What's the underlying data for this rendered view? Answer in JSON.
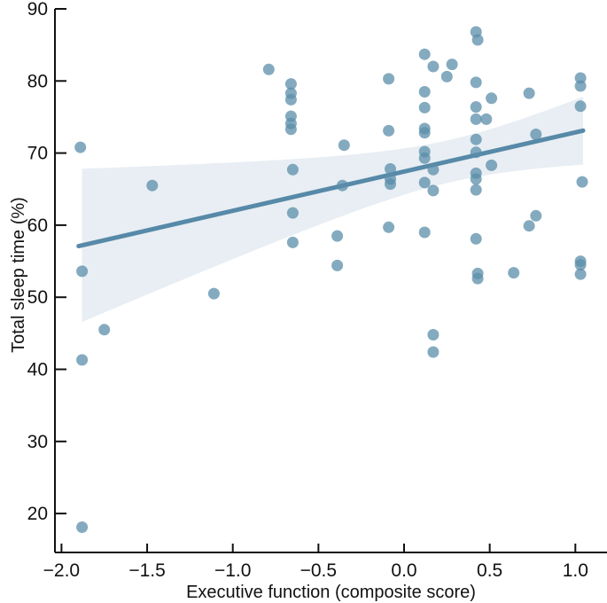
{
  "figure": {
    "background": "#ffffff"
  },
  "chart_data": {
    "type": "scatter",
    "title": "",
    "xlabel": "Executive function (composite score)",
    "ylabel": "Total sleep time (%)",
    "xlim": [
      -2.0,
      1.0
    ],
    "ylim": [
      20,
      90
    ],
    "grid": false,
    "legend": "none",
    "xticks": [
      {
        "value": -2.0,
        "label": "−2.0"
      },
      {
        "value": -1.5,
        "label": "−1.5"
      },
      {
        "value": -1.0,
        "label": "−1.0"
      },
      {
        "value": -0.5,
        "label": "−0.5"
      },
      {
        "value": 0.0,
        "label": "0.0"
      },
      {
        "value": 0.5,
        "label": "0.5"
      },
      {
        "value": 1.0,
        "label": "1.0"
      }
    ],
    "yticks": [
      {
        "value": 20,
        "label": "20"
      },
      {
        "value": 30,
        "label": "30"
      },
      {
        "value": 40,
        "label": "40"
      },
      {
        "value": 50,
        "label": "50"
      },
      {
        "value": 60,
        "label": "60"
      },
      {
        "value": 70,
        "label": "70"
      },
      {
        "value": 80,
        "label": "80"
      },
      {
        "value": 90,
        "label": "90"
      }
    ],
    "points": [
      [
        -1.89,
        70.8
      ],
      [
        -1.88,
        53.6
      ],
      [
        -1.88,
        41.3
      ],
      [
        -1.88,
        18.1
      ],
      [
        -1.75,
        45.5
      ],
      [
        -1.47,
        65.5
      ],
      [
        -1.11,
        50.5
      ],
      [
        -0.79,
        81.6
      ],
      [
        -0.66,
        79.6
      ],
      [
        -0.66,
        78.3
      ],
      [
        -0.66,
        77.4
      ],
      [
        -0.66,
        75.1
      ],
      [
        -0.66,
        74.1
      ],
      [
        -0.66,
        73.3
      ],
      [
        -0.65,
        67.7
      ],
      [
        -0.65,
        61.7
      ],
      [
        -0.65,
        57.6
      ],
      [
        -0.39,
        58.5
      ],
      [
        -0.39,
        54.4
      ],
      [
        -0.36,
        65.5
      ],
      [
        -0.35,
        71.1
      ],
      [
        -0.09,
        80.3
      ],
      [
        -0.09,
        73.1
      ],
      [
        -0.08,
        67.8
      ],
      [
        -0.08,
        66.4
      ],
      [
        -0.08,
        65.7
      ],
      [
        -0.09,
        59.7
      ],
      [
        0.12,
        83.7
      ],
      [
        0.12,
        78.5
      ],
      [
        0.12,
        76.3
      ],
      [
        0.12,
        73.4
      ],
      [
        0.12,
        72.8
      ],
      [
        0.12,
        70.2
      ],
      [
        0.12,
        69.3
      ],
      [
        0.12,
        65.9
      ],
      [
        0.12,
        59.0
      ],
      [
        0.17,
        82.0
      ],
      [
        0.17,
        67.7
      ],
      [
        0.17,
        64.8
      ],
      [
        0.17,
        44.8
      ],
      [
        0.17,
        42.4
      ],
      [
        0.25,
        80.6
      ],
      [
        0.28,
        82.3
      ],
      [
        0.42,
        86.8
      ],
      [
        0.43,
        85.7
      ],
      [
        0.42,
        79.8
      ],
      [
        0.42,
        76.4
      ],
      [
        0.42,
        74.7
      ],
      [
        0.48,
        74.7
      ],
      [
        0.42,
        71.9
      ],
      [
        0.42,
        70.1
      ],
      [
        0.42,
        67.2
      ],
      [
        0.42,
        66.4
      ],
      [
        0.42,
        64.9
      ],
      [
        0.42,
        58.1
      ],
      [
        0.43,
        53.3
      ],
      [
        0.43,
        52.6
      ],
      [
        0.51,
        77.6
      ],
      [
        0.51,
        68.3
      ],
      [
        0.64,
        53.4
      ],
      [
        0.73,
        78.3
      ],
      [
        0.73,
        59.9
      ],
      [
        0.77,
        72.6
      ],
      [
        0.77,
        61.3
      ],
      [
        1.03,
        80.4
      ],
      [
        1.03,
        79.3
      ],
      [
        1.03,
        76.5
      ],
      [
        1.04,
        66.0
      ],
      [
        1.03,
        55.0
      ],
      [
        1.03,
        54.5
      ],
      [
        1.03,
        53.2
      ]
    ],
    "trendline": {
      "x_start": -1.9,
      "x_end": 1.045,
      "intercept": 67.43,
      "slope": 5.44,
      "y_at_start": 57.1,
      "y_at_end": 73.1
    },
    "confidence_band": {
      "x_start": -1.88,
      "x_end": 1.045,
      "half_width_min": 2.95,
      "x_at_min": 0.27,
      "curvature": 22.5,
      "left_edge_range": [
        47.0,
        68.3
      ],
      "right_edge_range": [
        67.8,
        77.8
      ]
    },
    "colors": {
      "point": "#5b8da9",
      "point_opacity": 0.75,
      "line": "#5789a8",
      "band": "#e8eef3",
      "axis": "#111111"
    }
  }
}
